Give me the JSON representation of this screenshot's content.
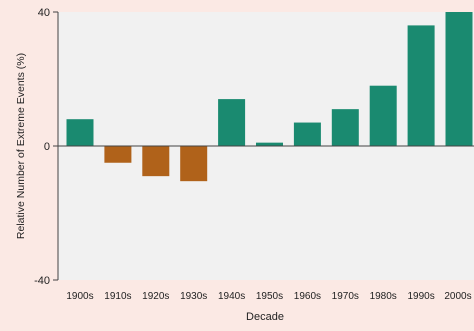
{
  "colors": {
    "page_background": "#fbe9e4",
    "plot_background": "#f1f1f1",
    "positive_bar": "#1a8a70",
    "negative_bar": "#b0621a",
    "axis_line": "#444444"
  },
  "chart_data": {
    "type": "bar",
    "title": "",
    "xlabel": "Decade",
    "ylabel": "Relative Number of Extreme Events (%)",
    "ylim": [
      -40,
      40
    ],
    "yticks": [
      "40",
      "0",
      "-40"
    ],
    "ytick_values": [
      40,
      0,
      -40
    ],
    "grid": false,
    "legend": "none",
    "categories": [
      "1900s",
      "1910s",
      "1920s",
      "1930s",
      "1940s",
      "1950s",
      "1960s",
      "1970s",
      "1980s",
      "1990s",
      "2000s"
    ],
    "values": [
      8,
      -5,
      -9,
      -10.5,
      14,
      1,
      7,
      11,
      18,
      36,
      40
    ]
  }
}
